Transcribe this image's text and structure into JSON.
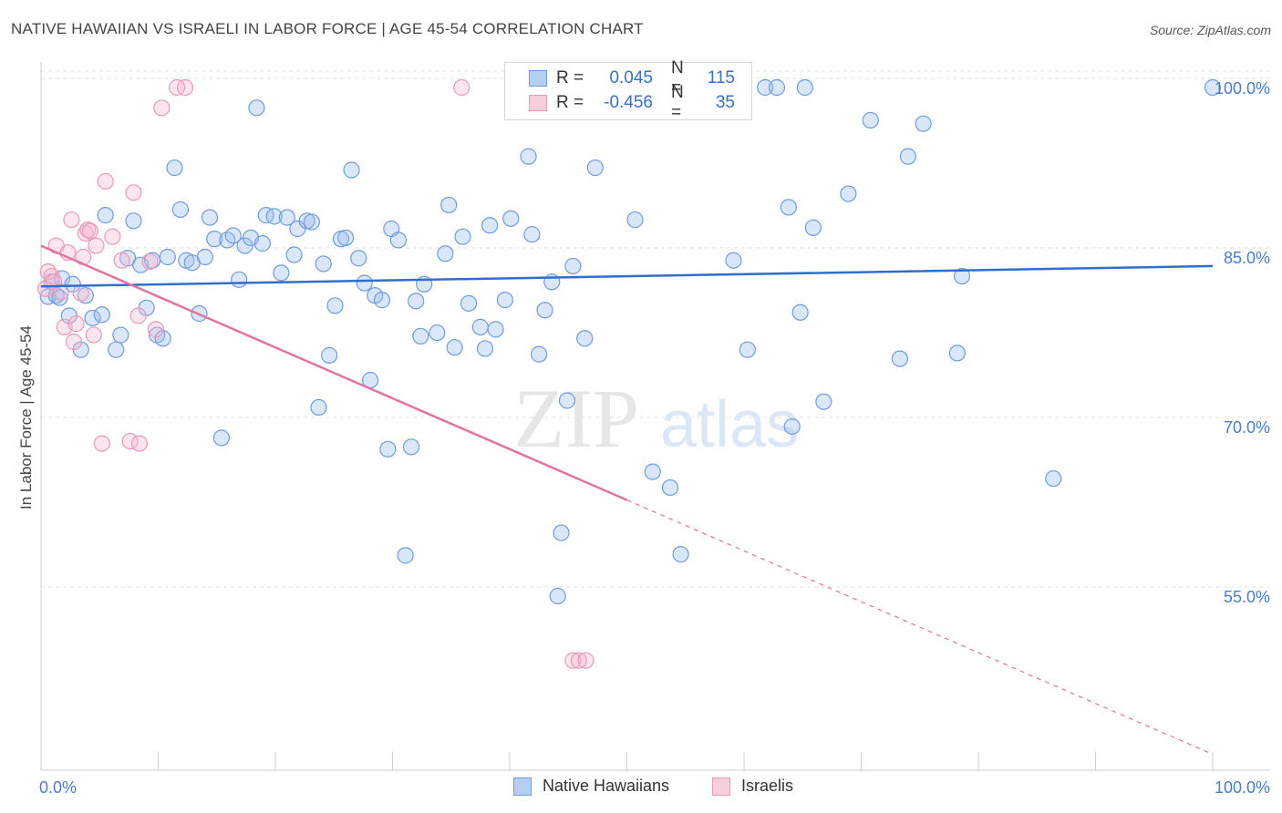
{
  "title": "NATIVE HAWAIIAN VS ISRAELI IN LABOR FORCE | AGE 45-54 CORRELATION CHART",
  "source": "Source: ZipAtlas.com",
  "watermark": {
    "zip": "ZIP",
    "atlas": "atlas"
  },
  "legend": {
    "rows": [
      {
        "r_label": "R =",
        "r_value": "0.045",
        "n_label": "N =",
        "n_value": "115",
        "color": "#9fc1ee",
        "border": "#6f9be0"
      },
      {
        "r_label": "R =",
        "r_value": "-0.456",
        "n_label": "N =",
        "n_value": "35",
        "color": "#f6c0d3",
        "border": "#e89ab6"
      }
    ]
  },
  "bottom_legend": [
    {
      "label": "Native Hawaiians",
      "color": "#a9c8f2",
      "border": "#6f9be0"
    },
    {
      "label": "Israelis",
      "color": "#f8c6d6",
      "border": "#e89ab6"
    }
  ],
  "chart_data": {
    "type": "scatter",
    "title": "NATIVE HAWAIIAN VS ISRAELI IN LABOR FORCE | AGE 45-54 CORRELATION CHART",
    "xlabel": "",
    "ylabel": "In Labor Force | Age 45-54",
    "xlim": [
      0,
      100
    ],
    "ylim": [
      41,
      101
    ],
    "x_tick_labels": [
      "0.0%",
      "100.0%"
    ],
    "y_ticks": [
      55,
      70,
      85,
      100
    ],
    "y_tick_labels": [
      "55.0%",
      "70.0%",
      "85.0%",
      "100.0%"
    ],
    "grid": true,
    "legend_placement": "top-center",
    "series": [
      {
        "name": "Native Hawaiians",
        "color": "#6f9be0",
        "fill": "rgba(150,185,235,0.35)",
        "trend": {
          "x0": 0,
          "y0": 82.4,
          "x1": 100,
          "y1": 84.2,
          "color": "#2f6fcc",
          "dashed_from": null
        },
        "points": [
          [
            0.6,
            81.5
          ],
          [
            0.9,
            82.8
          ],
          [
            1.3,
            81.6
          ],
          [
            1.6,
            81.4
          ],
          [
            1.8,
            83.1
          ],
          [
            2.4,
            79.8
          ],
          [
            2.7,
            82.6
          ],
          [
            3.4,
            76.8
          ],
          [
            3.8,
            81.6
          ],
          [
            4.4,
            79.6
          ],
          [
            5.2,
            79.9
          ],
          [
            5.5,
            88.7
          ],
          [
            6.4,
            76.8
          ],
          [
            6.8,
            78.1
          ],
          [
            7.4,
            84.9
          ],
          [
            7.9,
            88.2
          ],
          [
            8.5,
            84.3
          ],
          [
            9.0,
            80.5
          ],
          [
            9.5,
            84.7
          ],
          [
            9.9,
            78.1
          ],
          [
            10.4,
            77.8
          ],
          [
            10.8,
            85.0
          ],
          [
            11.4,
            92.9
          ],
          [
            11.9,
            89.2
          ],
          [
            12.4,
            84.7
          ],
          [
            12.9,
            84.5
          ],
          [
            13.5,
            80.0
          ],
          [
            14.0,
            85.0
          ],
          [
            14.4,
            88.5
          ],
          [
            14.8,
            86.6
          ],
          [
            15.4,
            69.0
          ],
          [
            15.9,
            86.5
          ],
          [
            16.4,
            86.9
          ],
          [
            16.9,
            83.0
          ],
          [
            17.4,
            86.0
          ],
          [
            17.9,
            86.7
          ],
          [
            18.4,
            98.2
          ],
          [
            18.9,
            86.2
          ],
          [
            19.2,
            88.7
          ],
          [
            19.9,
            88.6
          ],
          [
            20.5,
            83.6
          ],
          [
            21.0,
            88.5
          ],
          [
            21.6,
            85.2
          ],
          [
            21.9,
            87.5
          ],
          [
            22.7,
            88.2
          ],
          [
            23.1,
            88.1
          ],
          [
            23.7,
            71.7
          ],
          [
            24.1,
            84.4
          ],
          [
            24.6,
            76.3
          ],
          [
            25.1,
            80.7
          ],
          [
            25.6,
            86.6
          ],
          [
            26.0,
            86.7
          ],
          [
            26.5,
            92.7
          ],
          [
            27.1,
            84.9
          ],
          [
            27.6,
            82.7
          ],
          [
            28.1,
            74.1
          ],
          [
            28.5,
            81.6
          ],
          [
            29.1,
            81.2
          ],
          [
            29.6,
            68.0
          ],
          [
            29.9,
            87.5
          ],
          [
            30.5,
            86.5
          ],
          [
            31.1,
            58.6
          ],
          [
            31.6,
            68.2
          ],
          [
            32.0,
            81.1
          ],
          [
            32.4,
            78.0
          ],
          [
            32.7,
            82.6
          ],
          [
            33.8,
            78.3
          ],
          [
            34.5,
            85.3
          ],
          [
            34.8,
            89.6
          ],
          [
            35.3,
            77.0
          ],
          [
            36.0,
            86.8
          ],
          [
            36.5,
            80.9
          ],
          [
            37.5,
            78.8
          ],
          [
            37.9,
            76.9
          ],
          [
            38.3,
            87.8
          ],
          [
            38.8,
            78.6
          ],
          [
            39.6,
            81.2
          ],
          [
            40.1,
            88.4
          ],
          [
            41.0,
            100.0
          ],
          [
            41.6,
            93.9
          ],
          [
            41.9,
            87.0
          ],
          [
            42.5,
            76.4
          ],
          [
            43.0,
            80.3
          ],
          [
            43.6,
            82.8
          ],
          [
            44.4,
            60.6
          ],
          [
            44.1,
            55.0
          ],
          [
            44.9,
            72.3
          ],
          [
            45.4,
            84.2
          ],
          [
            46.0,
            98.3
          ],
          [
            46.4,
            77.8
          ],
          [
            47.3,
            92.9
          ],
          [
            50.7,
            88.3
          ],
          [
            52.2,
            66.0
          ],
          [
            53.7,
            64.6
          ],
          [
            54.6,
            58.7
          ],
          [
            55.4,
            100.0
          ],
          [
            56.8,
            100.0
          ],
          [
            59.1,
            84.7
          ],
          [
            60.3,
            76.8
          ],
          [
            61.8,
            100.0
          ],
          [
            62.8,
            100.0
          ],
          [
            63.8,
            89.4
          ],
          [
            64.1,
            70.0
          ],
          [
            64.8,
            80.1
          ],
          [
            65.2,
            100.0
          ],
          [
            65.9,
            87.6
          ],
          [
            66.8,
            72.2
          ],
          [
            68.9,
            90.6
          ],
          [
            70.8,
            97.1
          ],
          [
            73.3,
            76.0
          ],
          [
            74.0,
            93.9
          ],
          [
            75.3,
            96.8
          ],
          [
            78.2,
            76.5
          ],
          [
            78.6,
            83.3
          ],
          [
            86.4,
            65.4
          ],
          [
            100.0,
            100.0
          ]
        ]
      },
      {
        "name": "Israelis",
        "color": "#e89ab6",
        "fill": "rgba(245,180,205,0.35)",
        "trend": {
          "x0": 0,
          "y0": 86.0,
          "x1": 100,
          "y1": 41.0,
          "solid_until_x": 50,
          "color": "#e2739e"
        },
        "points": [
          [
            0.4,
            82.2
          ],
          [
            0.6,
            83.7
          ],
          [
            0.9,
            83.3
          ],
          [
            1.1,
            82.8
          ],
          [
            1.3,
            86.0
          ],
          [
            1.7,
            81.9
          ],
          [
            2.0,
            78.8
          ],
          [
            2.3,
            85.4
          ],
          [
            2.6,
            88.3
          ],
          [
            2.8,
            77.5
          ],
          [
            3.0,
            79.1
          ],
          [
            3.4,
            81.8
          ],
          [
            3.6,
            85.0
          ],
          [
            3.8,
            87.1
          ],
          [
            4.0,
            87.4
          ],
          [
            4.2,
            87.3
          ],
          [
            4.5,
            78.1
          ],
          [
            4.7,
            86.0
          ],
          [
            5.2,
            68.5
          ],
          [
            5.5,
            91.7
          ],
          [
            6.1,
            86.8
          ],
          [
            6.9,
            84.7
          ],
          [
            7.6,
            68.7
          ],
          [
            7.9,
            90.7
          ],
          [
            8.3,
            79.8
          ],
          [
            8.4,
            68.5
          ],
          [
            9.3,
            84.6
          ],
          [
            9.8,
            78.6
          ],
          [
            10.3,
            98.2
          ],
          [
            11.6,
            100.0
          ],
          [
            12.3,
            100.0
          ],
          [
            35.9,
            100.0
          ],
          [
            45.4,
            49.3
          ],
          [
            45.9,
            49.3
          ],
          [
            46.5,
            49.3
          ]
        ]
      }
    ]
  }
}
